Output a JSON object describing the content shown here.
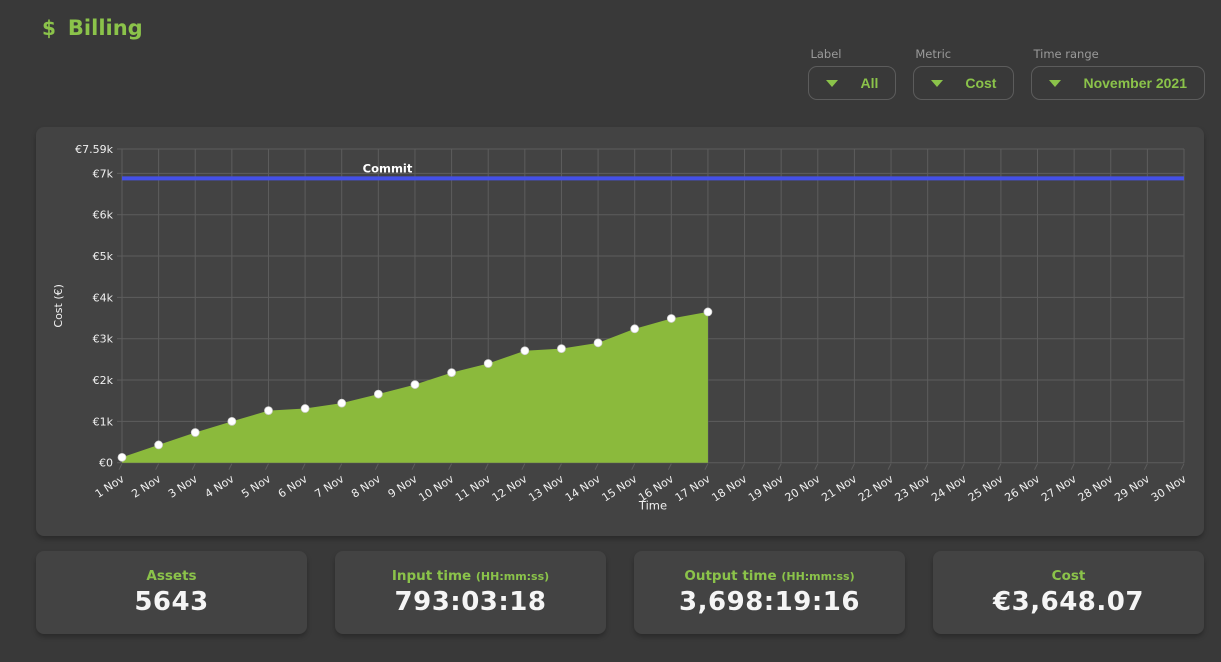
{
  "header": {
    "icon": "$",
    "title": "Billing"
  },
  "filters": [
    {
      "label": "Label",
      "value": "All"
    },
    {
      "label": "Metric",
      "value": "Cost"
    },
    {
      "label": "Time range",
      "value": "November 2021"
    }
  ],
  "chart_data": {
    "type": "area",
    "title": "",
    "xlabel": "Time",
    "ylabel": "Cost (€)",
    "grid": true,
    "legend": false,
    "ylim": [
      0,
      7590
    ],
    "x_labels": [
      "1 Nov",
      "2 Nov",
      "3 Nov",
      "4 Nov",
      "5 Nov",
      "6 Nov",
      "7 Nov",
      "8 Nov",
      "9 Nov",
      "10 Nov",
      "11 Nov",
      "12 Nov",
      "13 Nov",
      "14 Nov",
      "15 Nov",
      "16 Nov",
      "17 Nov",
      "18 Nov",
      "19 Nov",
      "20 Nov",
      "21 Nov",
      "22 Nov",
      "23 Nov",
      "24 Nov",
      "25 Nov",
      "26 Nov",
      "27 Nov",
      "28 Nov",
      "29 Nov",
      "30 Nov"
    ],
    "yticks": [
      {
        "value": 0,
        "label": "€0"
      },
      {
        "value": 1000,
        "label": "€1k"
      },
      {
        "value": 2000,
        "label": "€2k"
      },
      {
        "value": 3000,
        "label": "€3k"
      },
      {
        "value": 4000,
        "label": "€4k"
      },
      {
        "value": 5000,
        "label": "€5k"
      },
      {
        "value": 6000,
        "label": "€6k"
      },
      {
        "value": 7000,
        "label": "€7k"
      },
      {
        "value": 7590,
        "label": "€7.59k"
      }
    ],
    "series": [
      {
        "name": "Cost",
        "values": [
          130,
          430,
          730,
          1000,
          1260,
          1310,
          1440,
          1660,
          1890,
          2180,
          2400,
          2710,
          2760,
          2900,
          3240,
          3490,
          3648.07
        ]
      }
    ],
    "annotation_line": {
      "label": "Commit",
      "value": 6880
    },
    "colors": {
      "area": "#8bba3c",
      "dot": "#ffffff",
      "commit_line": "#4450e6",
      "grid": "#5d5d5d",
      "axis_text": "#f0f0f0",
      "annotation_text": "#ffffff"
    }
  },
  "stats": [
    {
      "label": "Assets",
      "unit": "",
      "value": "5643"
    },
    {
      "label": "Input time",
      "unit": "(HH:mm:ss)",
      "value": "793:03:18"
    },
    {
      "label": "Output time",
      "unit": "(HH:mm:ss)",
      "value": "3,698:19:16"
    },
    {
      "label": "Cost",
      "unit": "",
      "value": "€3,648.07"
    }
  ]
}
